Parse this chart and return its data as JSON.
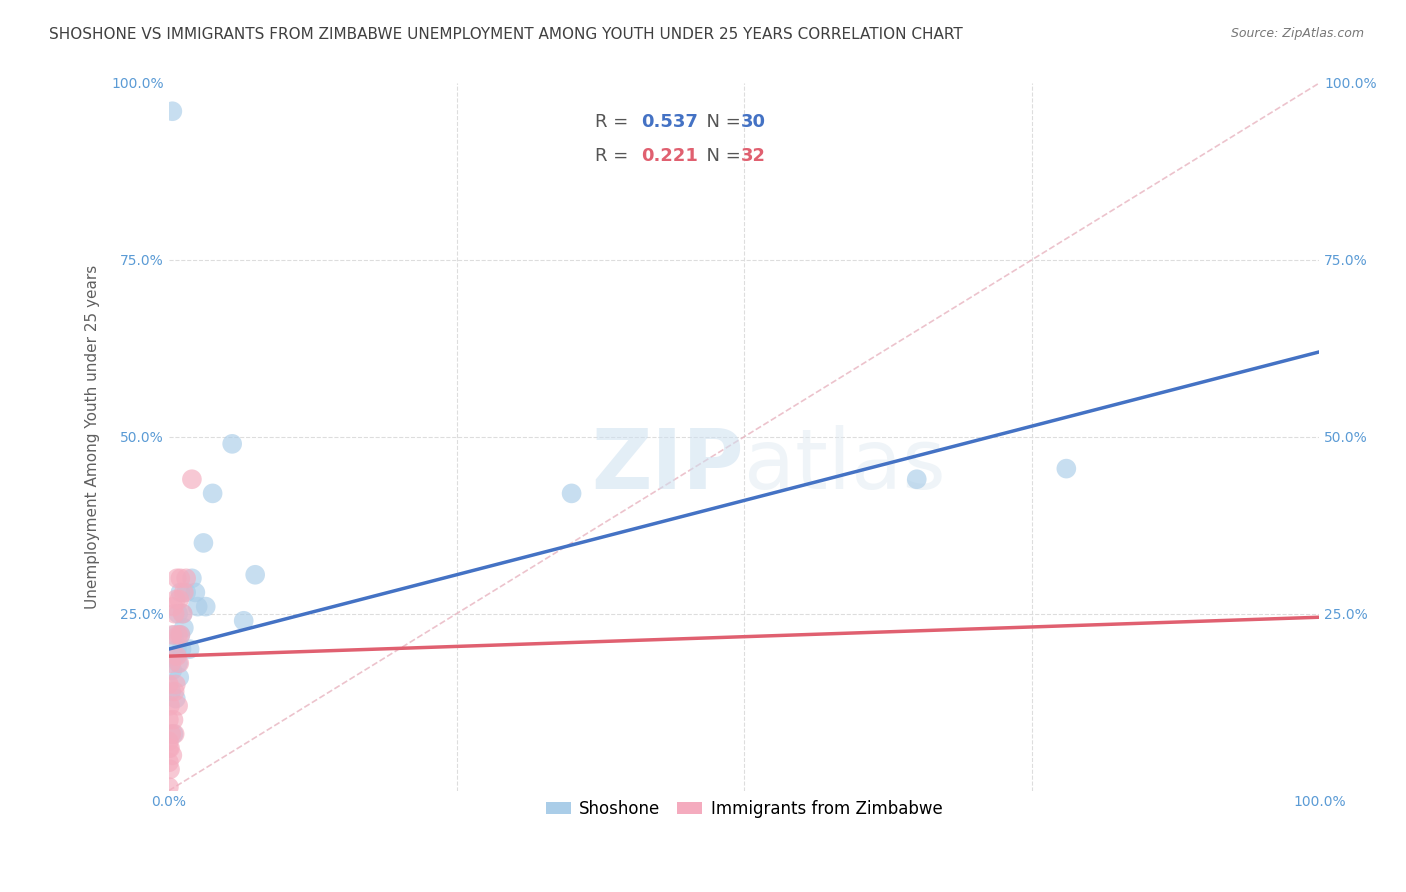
{
  "title": "SHOSHONE VS IMMIGRANTS FROM ZIMBABWE UNEMPLOYMENT AMONG YOUTH UNDER 25 YEARS CORRELATION CHART",
  "source": "Source: ZipAtlas.com",
  "ylabel": "Unemployment Among Youth under 25 years",
  "watermark": "ZIPatlas",
  "shoshone_color": "#aacde8",
  "zimbabwe_color": "#f4abbe",
  "shoshone_line_color": "#4472c4",
  "zimbabwe_line_color": "#e06070",
  "diagonal_color": "#e8b4c0",
  "grid_color": "#dddddd",
  "background_color": "#ffffff",
  "tick_color": "#5b9bd5",
  "title_color": "#404040",
  "label_color": "#606060",
  "xlim": [
    0.0,
    1.0
  ],
  "ylim": [
    0.0,
    1.0
  ],
  "title_fontsize": 11,
  "label_fontsize": 11,
  "tick_fontsize": 10,
  "source_fontsize": 9,
  "legend_fontsize": 12,
  "shoshone_R": "0.537",
  "shoshone_N": "30",
  "zimbabwe_R": "0.221",
  "zimbabwe_N": "32",
  "shoshone_x": [
    0.002,
    0.003,
    0.004,
    0.005,
    0.005,
    0.006,
    0.007,
    0.008,
    0.008,
    0.009,
    0.01,
    0.01,
    0.011,
    0.012,
    0.013,
    0.015,
    0.018,
    0.02,
    0.023,
    0.025,
    0.03,
    0.032,
    0.038,
    0.055,
    0.065,
    0.075,
    0.35,
    0.65,
    0.78,
    0.003
  ],
  "shoshone_y": [
    0.14,
    0.17,
    0.08,
    0.19,
    0.22,
    0.13,
    0.2,
    0.25,
    0.18,
    0.16,
    0.22,
    0.28,
    0.2,
    0.25,
    0.23,
    0.28,
    0.2,
    0.3,
    0.28,
    0.26,
    0.35,
    0.26,
    0.42,
    0.49,
    0.24,
    0.305,
    0.42,
    0.44,
    0.455,
    0.96
  ],
  "zimbabwe_x": [
    0.0,
    0.0,
    0.0,
    0.0,
    0.0,
    0.001,
    0.001,
    0.001,
    0.002,
    0.002,
    0.003,
    0.003,
    0.004,
    0.004,
    0.005,
    0.005,
    0.005,
    0.006,
    0.006,
    0.007,
    0.007,
    0.008,
    0.008,
    0.009,
    0.009,
    0.01,
    0.01,
    0.012,
    0.013,
    0.015,
    0.02,
    0.0
  ],
  "zimbabwe_y": [
    0.04,
    0.06,
    0.07,
    0.1,
    0.15,
    0.03,
    0.06,
    0.12,
    0.08,
    0.18,
    0.05,
    0.22,
    0.1,
    0.26,
    0.08,
    0.14,
    0.25,
    0.15,
    0.27,
    0.19,
    0.3,
    0.12,
    0.22,
    0.18,
    0.27,
    0.22,
    0.3,
    0.25,
    0.28,
    0.3,
    0.44,
    0.005
  ]
}
